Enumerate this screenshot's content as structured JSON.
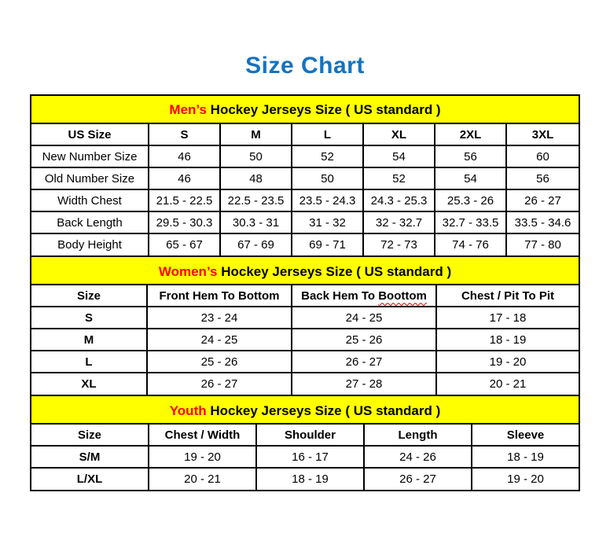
{
  "page": {
    "title": "Size Chart"
  },
  "colors": {
    "title_blue": "#1673BE",
    "band_yellow": "#FFFF00",
    "accent_red": "#FF0000",
    "border_black": "#000000",
    "squiggle_red": "#CC0000"
  },
  "mens": {
    "band": {
      "highlight": "Men’s",
      "rest": " Hockey Jerseys Size ( US standard )"
    },
    "columns": [
      "US Size",
      "S",
      "M",
      "L",
      "XL",
      "2XL",
      "3XL"
    ],
    "label_bold": false,
    "rows": [
      {
        "label": "New Number Size",
        "values": [
          "46",
          "50",
          "52",
          "54",
          "56",
          "60"
        ]
      },
      {
        "label": "Old Number Size",
        "values": [
          "46",
          "48",
          "50",
          "52",
          "54",
          "56"
        ]
      },
      {
        "label": "Width Chest",
        "values": [
          "21.5 - 22.5",
          "22.5 - 23.5",
          "23.5 - 24.3",
          "24.3 - 25.3",
          "25.3 - 26",
          "26 - 27"
        ]
      },
      {
        "label": "Back Length",
        "values": [
          "29.5 - 30.3",
          "30.3 - 31",
          "31 - 32",
          "32 - 32.7",
          "32.7 - 33.5",
          "33.5 - 34.6"
        ]
      },
      {
        "label": "Body Height",
        "values": [
          "65 - 67",
          "67 - 69",
          "69 - 71",
          "72 - 73",
          "74 - 76",
          "77 - 80"
        ]
      }
    ]
  },
  "womens": {
    "band": {
      "highlight": "Women’s",
      "rest": " Hockey Jerseys Size ( US standard )"
    },
    "columns": [
      "Size",
      "Front Hem To Bottom",
      {
        "text": "Back Hem To ",
        "wavy": "Boottom"
      },
      "Chest / Pit To Pit"
    ],
    "label_bold": true,
    "rows": [
      {
        "label": "S",
        "values": [
          "23 - 24",
          "24 - 25",
          "17 - 18"
        ]
      },
      {
        "label": "M",
        "values": [
          "24 - 25",
          "25 - 26",
          "18 - 19"
        ]
      },
      {
        "label": "L",
        "values": [
          "25 - 26",
          "26 - 27",
          "19 - 20"
        ]
      },
      {
        "label": "XL",
        "values": [
          "26 - 27",
          "27 - 28",
          "20 - 21"
        ]
      }
    ]
  },
  "youth": {
    "band": {
      "highlight": "Youth",
      "rest": " Hockey Jerseys Size ( US standard )"
    },
    "columns": [
      "Size",
      "Chest / Width",
      "Shoulder",
      "Length",
      "Sleeve"
    ],
    "label_bold": true,
    "rows": [
      {
        "label": "S/M",
        "values": [
          "19 - 20",
          "16 - 17",
          "24 - 26",
          "18 - 19"
        ]
      },
      {
        "label": "L/XL",
        "values": [
          "20 - 21",
          "18 - 19",
          "26 - 27",
          "19 - 20"
        ]
      }
    ]
  }
}
